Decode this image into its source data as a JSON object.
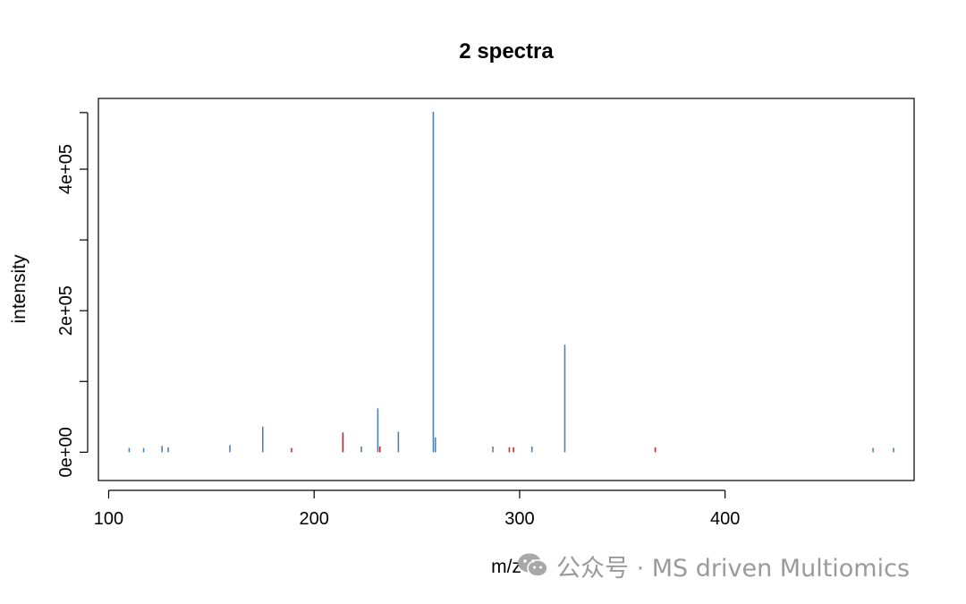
{
  "chart_data": {
    "type": "bar",
    "title": "2 spectra",
    "xlabel": "m/z",
    "ylabel": "intensity",
    "xlim": [
      95,
      492
    ],
    "ylim": [
      -40000,
      500000
    ],
    "x_ticks": [
      100,
      200,
      300,
      400
    ],
    "x_tick_labels": [
      "100",
      "200",
      "300",
      "400"
    ],
    "y_ticks": [
      0,
      100000,
      200000,
      300000,
      400000,
      480000
    ],
    "y_tick_labels": [
      "0e+00",
      "",
      "2e+05",
      "",
      "4e+05",
      ""
    ],
    "grid": false,
    "legend": "none",
    "series": [
      {
        "color": "#4f81b4",
        "peaks": [
          [
            110,
            6000
          ],
          [
            117,
            6000
          ],
          [
            126,
            9000
          ],
          [
            129,
            7000
          ],
          [
            159,
            10000
          ],
          [
            175,
            36000
          ],
          [
            214,
            25000
          ],
          [
            223,
            8000
          ],
          [
            231,
            62000
          ],
          [
            232,
            8000
          ],
          [
            241,
            29000
          ],
          [
            258,
            481000
          ],
          [
            259,
            21000
          ],
          [
            287,
            8000
          ],
          [
            306,
            8000
          ],
          [
            322,
            152000
          ],
          [
            472,
            6000
          ],
          [
            482,
            6000
          ]
        ]
      },
      {
        "color": "#d62728",
        "peaks": [
          [
            189,
            6000
          ],
          [
            214,
            28000
          ],
          [
            232,
            8000
          ],
          [
            295,
            7000
          ],
          [
            297,
            7000
          ],
          [
            366,
            7000
          ]
        ]
      }
    ]
  },
  "watermark": {
    "text": "公众号 · MS driven Multiomics",
    "icon": "wechat-icon"
  }
}
